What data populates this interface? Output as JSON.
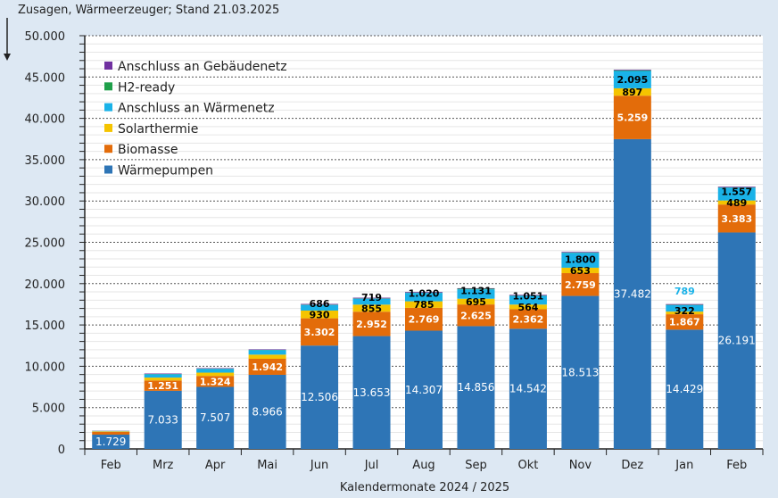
{
  "chart_data": {
    "type": "bar",
    "stacked": true,
    "title": "Zusagen, Wärmeerzeuger; Stand 21.03.2025",
    "xlabel": "Kalendermonate 2024 / 2025",
    "ylabel": "",
    "ylim": [
      0,
      50000
    ],
    "yticks": [
      "0",
      "5.000",
      "10.000",
      "15.000",
      "20.000",
      "25.000",
      "30.000",
      "35.000",
      "40.000",
      "45.000",
      "50.000"
    ],
    "grid": true,
    "legend_position": "top-left",
    "categories": [
      "Feb",
      "Mrz",
      "Apr",
      "Mai",
      "Jun",
      "Jul",
      "Aug",
      "Sep",
      "Okt",
      "Nov",
      "Dez",
      "Jan",
      "Feb"
    ],
    "series": [
      {
        "name": "Wärmepumpen",
        "color": "#2e75b6",
        "values": [
          1729,
          7033,
          7507,
          8966,
          12506,
          13653,
          14307,
          14856,
          14542,
          18513,
          37482,
          14429,
          26191
        ],
        "labels": [
          "1.729",
          "7.033",
          "7.507",
          "8.966",
          "12.506",
          "13.653",
          "14.307",
          "14.856",
          "14.542",
          "18.513",
          "37.482",
          "14.429",
          "26.191"
        ]
      },
      {
        "name": "Biomasse",
        "color": "#e36c0a",
        "values": [
          350,
          1251,
          1324,
          1942,
          3302,
          2952,
          2769,
          2625,
          2362,
          2759,
          5259,
          1867,
          3383
        ],
        "labels": [
          "",
          "1.251",
          "1.324",
          "1.942",
          "3.302",
          "2.952",
          "2.769",
          "2.625",
          "2.362",
          "2.759",
          "5.259",
          "1.867",
          "3.383"
        ]
      },
      {
        "name": "Solarthermie",
        "color": "#f5c400",
        "values": [
          60,
          350,
          400,
          500,
          930,
          855,
          785,
          695,
          564,
          653,
          897,
          322,
          489
        ],
        "labels": [
          "",
          "",
          "",
          "",
          "930",
          "855",
          "785",
          "695",
          "564",
          "653",
          "897",
          "322",
          "489"
        ]
      },
      {
        "name": "Anschluss an Wärmenetz",
        "color": "#1ab2e8",
        "values": [
          40,
          400,
          450,
          550,
          686,
          719,
          1020,
          1131,
          1051,
          1800,
          2095,
          789,
          1557
        ],
        "labels": [
          "",
          "",
          "",
          "",
          "686",
          "719",
          "1.020",
          "1.131",
          "1.051",
          "1.800",
          "2.095",
          "789",
          "1.557"
        ]
      },
      {
        "name": "H2-ready",
        "color": "#1fa04a",
        "values": [
          10,
          30,
          30,
          30,
          40,
          40,
          40,
          80,
          40,
          40,
          80,
          40,
          40
        ]
      },
      {
        "name": "Anschluss an Gebäudenetz",
        "color": "#7030a0",
        "values": [
          20,
          60,
          60,
          60,
          80,
          80,
          80,
          60,
          80,
          80,
          80,
          80,
          80
        ]
      }
    ]
  }
}
